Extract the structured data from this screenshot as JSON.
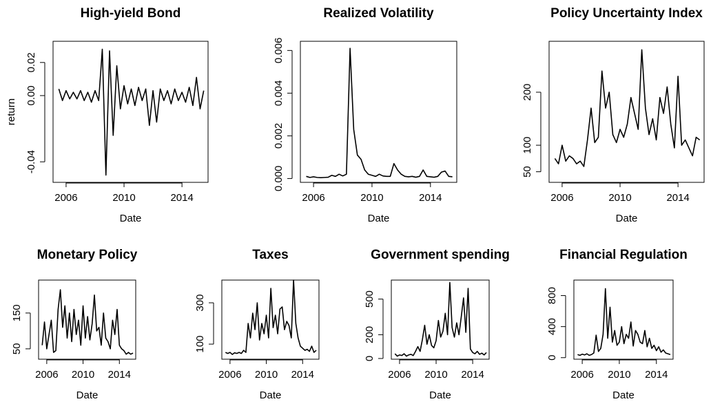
{
  "chart_data": [
    {
      "type": "line",
      "title": "High-yield Bond",
      "x_label": "Date",
      "y_label": "return",
      "x": [
        2005.5,
        2005.75,
        2006,
        2006.25,
        2006.5,
        2006.75,
        2007,
        2007.25,
        2007.5,
        2007.75,
        2008,
        2008.25,
        2008.5,
        2008.75,
        2009,
        2009.25,
        2009.5,
        2009.75,
        2010,
        2010.25,
        2010.5,
        2010.75,
        2011,
        2011.25,
        2011.5,
        2011.75,
        2012,
        2012.25,
        2012.5,
        2012.75,
        2013,
        2013.25,
        2013.5,
        2013.75,
        2014,
        2014.25,
        2014.5,
        2014.75,
        2015,
        2015.25,
        2015.5
      ],
      "values": [
        0.004,
        -0.003,
        0.003,
        -0.002,
        0.002,
        -0.002,
        0.003,
        -0.003,
        0.002,
        -0.004,
        0.003,
        -0.003,
        0.028,
        -0.048,
        0.027,
        -0.024,
        0.018,
        -0.008,
        0.006,
        -0.005,
        0.004,
        -0.006,
        0.005,
        -0.003,
        0.004,
        -0.018,
        0.003,
        -0.016,
        0.004,
        -0.003,
        0.003,
        -0.005,
        0.004,
        -0.003,
        0.002,
        -0.004,
        0.005,
        -0.006,
        0.011,
        -0.008,
        0.003
      ],
      "color": "#000000",
      "xlim": [
        2005.1,
        2015.8
      ],
      "xticks": [
        2006,
        2010,
        2014
      ],
      "ylim": [
        -0.0524,
        0.0328
      ],
      "yticks": [
        -0.04,
        {
          "value": 0,
          "label": "0.00"
        },
        0.02
      ]
    },
    {
      "type": "line",
      "title": "Realized Volatility",
      "x_label": "Date",
      "x": [
        2005.5,
        2005.75,
        2006,
        2006.25,
        2006.5,
        2006.75,
        2007,
        2007.25,
        2007.5,
        2007.75,
        2008,
        2008.25,
        2008.5,
        2008.75,
        2009,
        2009.25,
        2009.5,
        2009.75,
        2010,
        2010.25,
        2010.5,
        2010.75,
        2011,
        2011.25,
        2011.5,
        2011.75,
        2012,
        2012.25,
        2012.5,
        2012.75,
        2013,
        2013.25,
        2013.5,
        2013.75,
        2014,
        2014.25,
        2014.5,
        2014.75,
        2015,
        2015.25,
        2015.5
      ],
      "values": [
        0.0001,
        5e-05,
        8e-05,
        5e-05,
        4e-05,
        5e-05,
        6e-05,
        0.00015,
        0.0001,
        0.0002,
        0.00012,
        0.0002,
        0.0061,
        0.0023,
        0.0011,
        0.0009,
        0.0004,
        0.0002,
        0.00015,
        0.0001,
        0.0002,
        0.00012,
        0.0001,
        0.0001,
        0.0007,
        0.0004,
        0.0002,
        0.0001,
        8e-05,
        0.0001,
        6e-05,
        0.0001,
        0.0004,
        0.0001,
        8e-05,
        6e-05,
        0.0001,
        0.0003,
        0.00035,
        0.0001,
        8e-05
      ],
      "color": "#000000",
      "xlim": [
        2005.1,
        2015.8
      ],
      "xticks": [
        2006,
        2010,
        2014
      ],
      "ylim": [
        -0.00018,
        0.00643
      ],
      "yticks": [
        {
          "value": 0,
          "label": "0.000"
        },
        0.002,
        0.004,
        0.006
      ]
    },
    {
      "type": "line",
      "title": "Policy Uncertainty Index",
      "x_label": "Date",
      "x": [
        2005.5,
        2005.75,
        2006,
        2006.25,
        2006.5,
        2006.75,
        2007,
        2007.25,
        2007.5,
        2007.75,
        2008,
        2008.25,
        2008.5,
        2008.75,
        2009,
        2009.25,
        2009.5,
        2009.75,
        2010,
        2010.25,
        2010.5,
        2010.75,
        2011,
        2011.25,
        2011.5,
        2011.75,
        2012,
        2012.25,
        2012.5,
        2012.75,
        2013,
        2013.25,
        2013.5,
        2013.75,
        2014,
        2014.25,
        2014.5,
        2014.75,
        2015,
        2015.25,
        2015.5
      ],
      "values": [
        75,
        65,
        100,
        70,
        80,
        75,
        65,
        70,
        60,
        110,
        170,
        105,
        115,
        240,
        170,
        200,
        120,
        105,
        130,
        115,
        140,
        190,
        160,
        130,
        280,
        170,
        120,
        150,
        110,
        190,
        160,
        210,
        140,
        95,
        230,
        100,
        110,
        95,
        80,
        115,
        110
      ],
      "color": "#000000",
      "xlim": [
        2005.1,
        2015.8
      ],
      "xticks": [
        2006,
        2010,
        2014
      ],
      "ylim": [
        30,
        296
      ],
      "yticks": [
        50,
        100,
        200
      ]
    },
    {
      "type": "line",
      "title": "Monetary Policy",
      "x_label": "Date",
      "x": [
        2005.5,
        2005.75,
        2006,
        2006.25,
        2006.5,
        2006.75,
        2007,
        2007.25,
        2007.5,
        2007.75,
        2008,
        2008.25,
        2008.5,
        2008.75,
        2009,
        2009.25,
        2009.5,
        2009.75,
        2010,
        2010.25,
        2010.5,
        2010.75,
        2011,
        2011.25,
        2011.5,
        2011.75,
        2012,
        2012.25,
        2012.5,
        2012.75,
        2013,
        2013.25,
        2013.5,
        2013.75,
        2014,
        2014.25,
        2014.5,
        2014.75,
        2015,
        2015.25,
        2015.5
      ],
      "values": [
        60,
        125,
        50,
        90,
        130,
        40,
        45,
        160,
        215,
        110,
        170,
        80,
        150,
        70,
        160,
        90,
        130,
        60,
        170,
        80,
        140,
        75,
        120,
        200,
        100,
        110,
        60,
        150,
        80,
        70,
        50,
        130,
        90,
        160,
        60,
        50,
        45,
        35,
        40,
        35,
        38
      ],
      "color": "#000000",
      "xlim": [
        2005.1,
        2015.8
      ],
      "xticks": [
        2006,
        2010,
        2014
      ],
      "ylim": [
        21,
        242
      ],
      "yticks": [
        50,
        150
      ]
    },
    {
      "type": "line",
      "title": "Taxes",
      "x_label": "Date",
      "x": [
        2005.5,
        2005.75,
        2006,
        2006.25,
        2006.5,
        2006.75,
        2007,
        2007.25,
        2007.5,
        2007.75,
        2008,
        2008.25,
        2008.5,
        2008.75,
        2009,
        2009.25,
        2009.5,
        2009.75,
        2010,
        2010.25,
        2010.5,
        2010.75,
        2011,
        2011.25,
        2011.5,
        2011.75,
        2012,
        2012.25,
        2012.5,
        2012.75,
        2013,
        2013.25,
        2013.5,
        2013.75,
        2014,
        2014.25,
        2014.5,
        2014.75,
        2015,
        2015.25,
        2015.5
      ],
      "values": [
        60,
        55,
        60,
        50,
        58,
        55,
        60,
        55,
        70,
        60,
        200,
        130,
        250,
        170,
        300,
        120,
        200,
        150,
        240,
        130,
        370,
        180,
        240,
        150,
        270,
        280,
        170,
        210,
        190,
        130,
        410,
        200,
        130,
        90,
        80,
        70,
        75,
        65,
        90,
        60,
        70
      ],
      "color": "#000000",
      "xlim": [
        2005.1,
        2015.8
      ],
      "xticks": [
        2006,
        2010,
        2014
      ],
      "ylim": [
        27,
        410
      ],
      "yticks": [
        100,
        300
      ]
    },
    {
      "type": "line",
      "title": "Government spending",
      "x_label": "Date",
      "x": [
        2005.5,
        2005.75,
        2006,
        2006.25,
        2006.5,
        2006.75,
        2007,
        2007.25,
        2007.5,
        2007.75,
        2008,
        2008.25,
        2008.5,
        2008.75,
        2009,
        2009.25,
        2009.5,
        2009.75,
        2010,
        2010.25,
        2010.5,
        2010.75,
        2011,
        2011.25,
        2011.5,
        2011.75,
        2012,
        2012.25,
        2012.5,
        2012.75,
        2013,
        2013.25,
        2013.5,
        2013.75,
        2014,
        2014.25,
        2014.5,
        2014.75,
        2015,
        2015.25,
        2015.5
      ],
      "values": [
        40,
        20,
        30,
        25,
        40,
        20,
        30,
        35,
        25,
        60,
        100,
        60,
        160,
        280,
        120,
        200,
        110,
        90,
        150,
        320,
        180,
        230,
        380,
        200,
        640,
        260,
        180,
        300,
        200,
        350,
        510,
        220,
        590,
        80,
        50,
        40,
        60,
        35,
        45,
        30,
        50
      ],
      "color": "#000000",
      "xlim": [
        2005.1,
        2015.8
      ],
      "xticks": [
        2006,
        2010,
        2014
      ],
      "ylim": [
        -6,
        660
      ],
      "yticks": [
        0,
        200,
        500
      ]
    },
    {
      "type": "line",
      "title": "Financial Regulation",
      "x_label": "Date",
      "x": [
        2005.5,
        2005.75,
        2006,
        2006.25,
        2006.5,
        2006.75,
        2007,
        2007.25,
        2007.5,
        2007.75,
        2008,
        2008.25,
        2008.5,
        2008.75,
        2009,
        2009.25,
        2009.5,
        2009.75,
        2010,
        2010.25,
        2010.5,
        2010.75,
        2011,
        2011.25,
        2011.5,
        2011.75,
        2012,
        2012.25,
        2012.5,
        2012.75,
        2013,
        2013.25,
        2013.5,
        2013.75,
        2014,
        2014.25,
        2014.5,
        2014.75,
        2015,
        2015.25,
        2015.5
      ],
      "values": [
        40,
        30,
        45,
        35,
        50,
        30,
        40,
        60,
        290,
        80,
        120,
        300,
        890,
        250,
        650,
        200,
        350,
        160,
        200,
        400,
        180,
        300,
        250,
        460,
        150,
        350,
        300,
        200,
        180,
        350,
        140,
        250,
        120,
        160,
        90,
        140,
        70,
        100,
        60,
        50,
        40
      ],
      "color": "#000000",
      "xlim": [
        2005.1,
        2015.8
      ],
      "xticks": [
        2006,
        2010,
        2014
      ],
      "ylim": [
        -20,
        1000
      ],
      "yticks": [
        0,
        400,
        800
      ]
    }
  ]
}
